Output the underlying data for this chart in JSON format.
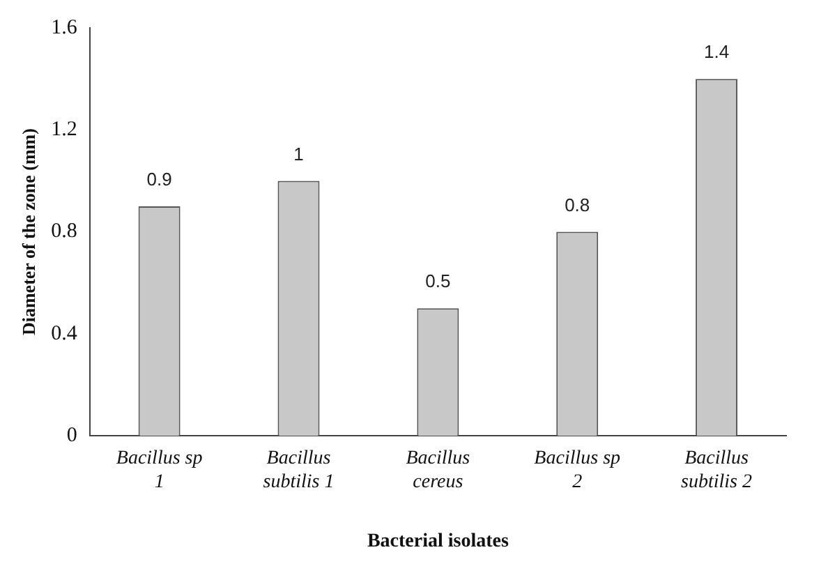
{
  "chart_data": {
    "type": "bar",
    "xlabel": "Bacterial isolates",
    "ylabel": "Diameter of the zone (mm)",
    "categories": [
      "Bacillus sp 1",
      "Bacillus subtilis 1",
      "Bacillus cereus",
      "Bacillus sp 2",
      "Bacillus subtilis 2"
    ],
    "values": [
      0.9,
      1,
      0.5,
      0.8,
      1.4
    ],
    "color": "#c8c8c8",
    "ylim": [
      0,
      1.6
    ],
    "yticks": [
      0,
      0.4,
      0.8,
      1.2,
      1.6
    ],
    "grid": false,
    "legend": false,
    "data_labels": true
  }
}
